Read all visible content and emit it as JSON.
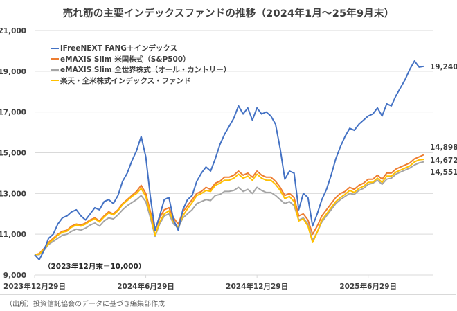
{
  "chart_data": {
    "type": "line",
    "title": "売れ筋の主要インデックスファンドの推移（2024年1月～25年9月末）",
    "xlabel": "",
    "ylabel": "",
    "ylim": [
      9000,
      21000
    ],
    "yticks": [
      9000,
      11000,
      13000,
      15000,
      17000,
      19000,
      21000
    ],
    "ytick_labels": [
      "9,000",
      "11,000",
      "13,000",
      "15,000",
      "17,000",
      "19,000",
      "21,000"
    ],
    "xtick_labels": [
      "2023年12月29日",
      "2024年6月29日",
      "2024年12月29日",
      "2025年6月29日"
    ],
    "xrange_months": [
      0,
      21
    ],
    "grid": true,
    "legend_position": "top-left",
    "annotation": "（2023年12月末＝10,000）",
    "source_note": "（出所）投資信託協会のデータに基づき編集部作成",
    "x": [
      0,
      0.25,
      0.5,
      0.75,
      1,
      1.25,
      1.5,
      1.75,
      2,
      2.25,
      2.5,
      2.75,
      3,
      3.25,
      3.5,
      3.75,
      4,
      4.25,
      4.5,
      4.75,
      5,
      5.25,
      5.5,
      5.75,
      6,
      6.25,
      6.5,
      6.75,
      7,
      7.25,
      7.5,
      7.75,
      8,
      8.25,
      8.5,
      8.75,
      9,
      9.25,
      9.5,
      9.75,
      10,
      10.25,
      10.5,
      10.75,
      11,
      11.25,
      11.5,
      11.75,
      12,
      12.25,
      12.5,
      12.75,
      13,
      13.25,
      13.5,
      13.75,
      14,
      14.25,
      14.5,
      14.75,
      15,
      15.25,
      15.5,
      15.75,
      16,
      16.25,
      16.5,
      16.75,
      17,
      17.25,
      17.5,
      17.75,
      18,
      18.25,
      18.5,
      18.75,
      19,
      19.25,
      19.5,
      19.75,
      20,
      20.25,
      20.5,
      20.75,
      21
    ],
    "series": [
      {
        "name": "iFreeNEXT FANG＋インデックス",
        "color": "#4472c4",
        "end_value": 19240,
        "values": [
          10000,
          9750,
          10200,
          10800,
          11000,
          11500,
          11800,
          11900,
          12100,
          12200,
          11900,
          11700,
          12000,
          12300,
          12200,
          12600,
          12700,
          12500,
          12900,
          13600,
          14000,
          14600,
          15100,
          15800,
          14800,
          12800,
          11200,
          11900,
          12700,
          12800,
          11700,
          11200,
          12200,
          12700,
          12900,
          13600,
          14000,
          14300,
          14100,
          14700,
          15400,
          15900,
          16300,
          16700,
          17300,
          16900,
          17200,
          16600,
          17200,
          16900,
          17000,
          16800,
          16400,
          15200,
          13700,
          14100,
          14000,
          12200,
          13000,
          12800,
          11400,
          12000,
          12700,
          13200,
          13900,
          14700,
          15300,
          15800,
          16200,
          16100,
          16400,
          16600,
          16800,
          16900,
          17200,
          16800,
          17400,
          17300,
          17800,
          18200,
          18600,
          19100,
          19500,
          19200,
          19240
        ]
      },
      {
        "name": "eMAXIS Slim 米国株式（S&P500）",
        "color": "#ed7d31",
        "end_value": 14898,
        "values": [
          10000,
          10050,
          10300,
          10600,
          10800,
          11000,
          11150,
          11200,
          11400,
          11500,
          11450,
          11550,
          11700,
          11800,
          11650,
          11900,
          12100,
          12000,
          12200,
          12500,
          12700,
          12900,
          13100,
          13400,
          13000,
          12100,
          11200,
          11800,
          12200,
          12300,
          11800,
          11500,
          12100,
          12400,
          12700,
          13000,
          13100,
          13300,
          13200,
          13500,
          13600,
          13800,
          13800,
          13900,
          14100,
          13900,
          14000,
          13800,
          14100,
          13900,
          13800,
          13800,
          13600,
          13300,
          12900,
          13000,
          12800,
          11900,
          12000,
          11700,
          11000,
          11400,
          11900,
          12200,
          12500,
          12800,
          13000,
          13100,
          13300,
          13200,
          13400,
          13500,
          13700,
          13700,
          13900,
          13700,
          14000,
          14000,
          14200,
          14300,
          14400,
          14500,
          14700,
          14800,
          14898
        ]
      },
      {
        "name": "eMAXIS Slim 全世界株式（オール・カントリー）",
        "color": "#a5a5a5",
        "end_value": 14551,
        "values": [
          10000,
          10000,
          10200,
          10500,
          10650,
          10800,
          10950,
          11000,
          11150,
          11250,
          11200,
          11300,
          11450,
          11550,
          11400,
          11650,
          11800,
          11750,
          11950,
          12200,
          12400,
          12550,
          12700,
          12900,
          12600,
          11800,
          10900,
          11500,
          11900,
          12000,
          11500,
          11300,
          11800,
          12000,
          12200,
          12500,
          12600,
          12700,
          12650,
          12900,
          12950,
          13100,
          13100,
          13150,
          13300,
          13100,
          13200,
          13000,
          13300,
          13150,
          13050,
          13050,
          12900,
          12700,
          12500,
          12600,
          12400,
          11700,
          11800,
          11500,
          10700,
          11100,
          11600,
          11900,
          12200,
          12500,
          12700,
          12850,
          13000,
          12950,
          13150,
          13250,
          13450,
          13500,
          13650,
          13450,
          13700,
          13750,
          13950,
          14050,
          14150,
          14250,
          14400,
          14500,
          14551
        ]
      },
      {
        "name": "楽天・全米株式インデックス・ファンド",
        "color": "#ffc000",
        "end_value": 14672,
        "values": [
          10000,
          10030,
          10250,
          10550,
          10750,
          10950,
          11100,
          11150,
          11350,
          11450,
          11400,
          11500,
          11650,
          11750,
          11600,
          11850,
          12050,
          11950,
          12150,
          12450,
          12650,
          12850,
          13000,
          13250,
          12850,
          11950,
          10950,
          11600,
          12000,
          12150,
          11600,
          11350,
          11900,
          12250,
          12550,
          12900,
          13000,
          13150,
          13100,
          13400,
          13500,
          13650,
          13650,
          13750,
          13950,
          13750,
          13850,
          13650,
          13950,
          13750,
          13650,
          13650,
          13450,
          13150,
          12750,
          12850,
          12600,
          11650,
          11750,
          11400,
          10600,
          11100,
          11700,
          12000,
          12300,
          12600,
          12800,
          12950,
          13150,
          13050,
          13250,
          13350,
          13550,
          13550,
          13750,
          13550,
          13850,
          13850,
          14050,
          14150,
          14250,
          14350,
          14550,
          14650,
          14672
        ]
      }
    ],
    "end_labels": [
      "19,240",
      "14,898",
      "14,672",
      "14,551"
    ]
  }
}
